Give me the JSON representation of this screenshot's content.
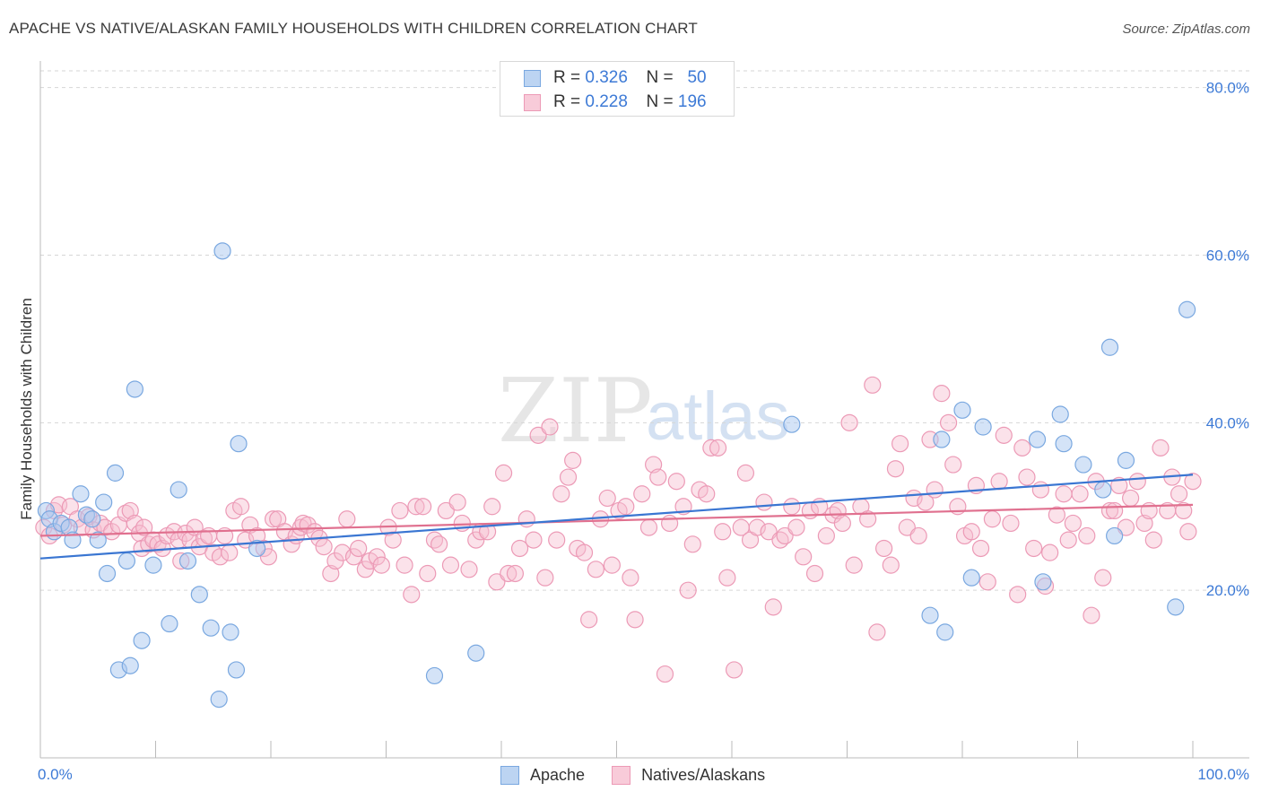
{
  "title": "APACHE VS NATIVE/ALASKAN FAMILY HOUSEHOLDS WITH CHILDREN CORRELATION CHART",
  "source": "Source: ZipAtlas.com",
  "watermark": {
    "zip": "ZIP",
    "atlas": "atlas"
  },
  "legend_top": {
    "apache": {
      "r_label": "R =",
      "r_value": "0.326",
      "n_label": "N =",
      "n_value": "50"
    },
    "natives": {
      "r_label": "R =",
      "r_value": "0.228",
      "n_label": "N =",
      "n_value": "196"
    }
  },
  "legend_bottom": {
    "apache": "Apache",
    "natives": "Natives/Alaskans"
  },
  "colors": {
    "apache_fill": "#a9c8f0",
    "apache_stroke": "#7aa8e0",
    "apache_line": "#3a76d2",
    "natives_fill": "#f6bfd0",
    "natives_stroke": "#ec9ab6",
    "natives_line": "#e0708f",
    "tick_label": "#3d7ad6",
    "grid": "#d6d6d6"
  },
  "chart_data": {
    "type": "scatter",
    "title": "APACHE VS NATIVE/ALASKAN FAMILY HOUSEHOLDS WITH CHILDREN CORRELATION CHART",
    "xlabel": "",
    "ylabel": "Family Households with Children",
    "xlim": [
      0,
      100
    ],
    "ylim": [
      0,
      82
    ],
    "x_tick_labels": [
      "0.0%",
      "100.0%"
    ],
    "y_ticks": [
      20,
      40,
      60,
      80
    ],
    "y_tick_labels": [
      "20.0%",
      "40.0%",
      "60.0%",
      "80.0%"
    ],
    "grid": true,
    "legend_position": "bottom-center",
    "series": [
      {
        "name": "Apache",
        "r": 0.326,
        "n": 50,
        "trend": {
          "x": [
            0,
            100
          ],
          "y": [
            23.8,
            33.8
          ]
        },
        "points": [
          [
            0.5,
            29.5
          ],
          [
            0.8,
            28.5
          ],
          [
            1.2,
            27
          ],
          [
            1.8,
            28
          ],
          [
            2.5,
            27.5
          ],
          [
            2.8,
            26
          ],
          [
            3.5,
            31.5
          ],
          [
            4,
            29
          ],
          [
            4.5,
            28.5
          ],
          [
            5,
            26
          ],
          [
            5.5,
            30.5
          ],
          [
            5.8,
            22
          ],
          [
            6.5,
            34
          ],
          [
            6.8,
            10.5
          ],
          [
            7.5,
            23.5
          ],
          [
            7.8,
            11
          ],
          [
            8.2,
            44
          ],
          [
            8.8,
            14
          ],
          [
            9.8,
            23
          ],
          [
            11.2,
            16
          ],
          [
            12,
            32
          ],
          [
            12.8,
            23.5
          ],
          [
            13.8,
            19.5
          ],
          [
            14.8,
            15.5
          ],
          [
            15.5,
            7
          ],
          [
            15.8,
            60.5
          ],
          [
            16.5,
            15
          ],
          [
            17,
            10.5
          ],
          [
            17.2,
            37.5
          ],
          [
            18.8,
            25
          ],
          [
            34.2,
            9.8
          ],
          [
            37.8,
            12.5
          ],
          [
            65.2,
            39.8
          ],
          [
            77.2,
            17
          ],
          [
            78.2,
            38
          ],
          [
            78.5,
            15
          ],
          [
            80,
            41.5
          ],
          [
            80.8,
            21.5
          ],
          [
            81.8,
            39.5
          ],
          [
            86.5,
            38
          ],
          [
            87,
            21
          ],
          [
            88.5,
            41
          ],
          [
            88.8,
            37.5
          ],
          [
            90.5,
            35
          ],
          [
            92.2,
            32
          ],
          [
            92.8,
            49
          ],
          [
            93.2,
            26.5
          ],
          [
            94.2,
            35.5
          ],
          [
            98.5,
            18
          ],
          [
            99.5,
            53.5
          ]
        ]
      },
      {
        "name": "Natives/Alaskans",
        "r": 0.228,
        "n": 196,
        "trend": {
          "x": [
            0,
            100
          ],
          "y": [
            26.5,
            30.2
          ]
        },
        "points": [
          [
            0.3,
            27.5
          ],
          [
            0.8,
            26.5
          ],
          [
            1.2,
            29.5
          ],
          [
            1.6,
            30.2
          ],
          [
            2,
            27.8
          ],
          [
            2.6,
            30
          ],
          [
            3.2,
            28.5
          ],
          [
            3.6,
            27.5
          ],
          [
            4.2,
            28.8
          ],
          [
            4.6,
            27.2
          ],
          [
            5.2,
            28
          ],
          [
            5.6,
            27.5
          ],
          [
            6.2,
            27
          ],
          [
            6.8,
            27.8
          ],
          [
            7.4,
            29.2
          ],
          [
            7.8,
            29.5
          ],
          [
            8.2,
            28
          ],
          [
            8.6,
            26.8
          ],
          [
            8.8,
            25
          ],
          [
            9,
            27.5
          ],
          [
            9.4,
            25.5
          ],
          [
            9.8,
            26
          ],
          [
            10.2,
            25.5
          ],
          [
            10.6,
            25
          ],
          [
            11,
            26.5
          ],
          [
            11.6,
            27
          ],
          [
            12,
            26
          ],
          [
            12.2,
            23.5
          ],
          [
            12.6,
            26.8
          ],
          [
            13,
            26
          ],
          [
            13.4,
            27.5
          ],
          [
            13.8,
            25.2
          ],
          [
            14.2,
            26.2
          ],
          [
            14.6,
            26.5
          ],
          [
            15,
            24.5
          ],
          [
            15.6,
            24
          ],
          [
            16,
            26.5
          ],
          [
            16.4,
            24.5
          ],
          [
            16.8,
            29.5
          ],
          [
            17.4,
            30
          ],
          [
            17.8,
            26
          ],
          [
            18.2,
            27.8
          ],
          [
            18.8,
            26.5
          ],
          [
            19.4,
            25
          ],
          [
            19.8,
            24
          ],
          [
            20.2,
            28.5
          ],
          [
            20.6,
            28.5
          ],
          [
            21.2,
            27
          ],
          [
            21.8,
            25.5
          ],
          [
            22.2,
            26.5
          ],
          [
            22.6,
            27.5
          ],
          [
            22.8,
            28
          ],
          [
            23.2,
            27.8
          ],
          [
            23.8,
            27
          ],
          [
            24.2,
            26.2
          ],
          [
            24.6,
            25.2
          ],
          [
            25.2,
            22
          ],
          [
            25.6,
            23.5
          ],
          [
            26.2,
            24.5
          ],
          [
            26.6,
            28.5
          ],
          [
            27.2,
            24
          ],
          [
            27.6,
            25
          ],
          [
            28.2,
            22.5
          ],
          [
            28.6,
            23.5
          ],
          [
            29.2,
            24
          ],
          [
            29.6,
            23
          ],
          [
            30.2,
            27.5
          ],
          [
            30.6,
            26
          ],
          [
            31.2,
            29.5
          ],
          [
            31.6,
            23
          ],
          [
            32.2,
            19.5
          ],
          [
            32.6,
            30
          ],
          [
            33.2,
            30
          ],
          [
            33.6,
            22
          ],
          [
            34.2,
            26
          ],
          [
            34.6,
            25.5
          ],
          [
            35.2,
            29.5
          ],
          [
            35.6,
            23
          ],
          [
            36.2,
            30.5
          ],
          [
            36.6,
            28
          ],
          [
            37.2,
            22.5
          ],
          [
            37.8,
            26
          ],
          [
            38.2,
            27
          ],
          [
            38.8,
            27
          ],
          [
            39.2,
            30
          ],
          [
            39.6,
            21
          ],
          [
            40.2,
            34
          ],
          [
            40.6,
            22
          ],
          [
            41.2,
            22
          ],
          [
            41.6,
            25
          ],
          [
            42.2,
            28.5
          ],
          [
            42.8,
            26
          ],
          [
            43.2,
            38.5
          ],
          [
            43.8,
            21.5
          ],
          [
            44.2,
            39.5
          ],
          [
            44.8,
            26
          ],
          [
            45.2,
            31.5
          ],
          [
            45.8,
            33.5
          ],
          [
            46.2,
            35.5
          ],
          [
            46.6,
            25
          ],
          [
            47.2,
            24.5
          ],
          [
            47.6,
            16.5
          ],
          [
            48.2,
            22.5
          ],
          [
            48.6,
            28.5
          ],
          [
            49.2,
            31
          ],
          [
            49.6,
            23
          ],
          [
            50.2,
            29.5
          ],
          [
            50.8,
            30
          ],
          [
            51.2,
            21.5
          ],
          [
            51.6,
            16.5
          ],
          [
            52.2,
            31.5
          ],
          [
            52.8,
            27.5
          ],
          [
            53.2,
            35
          ],
          [
            53.6,
            33.5
          ],
          [
            54.2,
            10
          ],
          [
            54.6,
            28
          ],
          [
            55.2,
            33
          ],
          [
            55.8,
            30
          ],
          [
            56.2,
            20
          ],
          [
            56.6,
            25.5
          ],
          [
            57.2,
            32
          ],
          [
            57.8,
            31.5
          ],
          [
            58.2,
            37
          ],
          [
            58.8,
            37
          ],
          [
            59.2,
            27
          ],
          [
            59.6,
            21.5
          ],
          [
            60.2,
            10.5
          ],
          [
            60.8,
            27.5
          ],
          [
            61.2,
            34
          ],
          [
            61.6,
            26
          ],
          [
            62.2,
            27.5
          ],
          [
            62.8,
            30.5
          ],
          [
            63.2,
            27
          ],
          [
            63.6,
            18
          ],
          [
            64.2,
            26
          ],
          [
            64.6,
            26.5
          ],
          [
            65.2,
            30
          ],
          [
            65.6,
            27.5
          ],
          [
            66.2,
            24
          ],
          [
            66.8,
            29.5
          ],
          [
            67.2,
            22
          ],
          [
            67.6,
            30
          ],
          [
            68.2,
            26.5
          ],
          [
            68.8,
            29
          ],
          [
            69.2,
            29.5
          ],
          [
            69.6,
            28
          ],
          [
            70.2,
            40
          ],
          [
            70.6,
            23
          ],
          [
            71.2,
            30
          ],
          [
            71.8,
            28.5
          ],
          [
            72.2,
            44.5
          ],
          [
            72.6,
            15
          ],
          [
            73.2,
            25
          ],
          [
            73.8,
            23
          ],
          [
            74.2,
            34.5
          ],
          [
            74.6,
            37.5
          ],
          [
            75.2,
            27.5
          ],
          [
            75.8,
            31
          ],
          [
            76.2,
            26.5
          ],
          [
            76.8,
            30.5
          ],
          [
            77.2,
            38
          ],
          [
            77.6,
            32
          ],
          [
            78.2,
            43.5
          ],
          [
            78.8,
            40
          ],
          [
            79.2,
            35
          ],
          [
            79.6,
            30
          ],
          [
            80.2,
            26.5
          ],
          [
            80.8,
            27
          ],
          [
            81.2,
            32.5
          ],
          [
            81.6,
            25
          ],
          [
            82.2,
            21
          ],
          [
            82.6,
            28.5
          ],
          [
            83.2,
            33
          ],
          [
            83.6,
            38.5
          ],
          [
            84.2,
            28
          ],
          [
            84.8,
            19.5
          ],
          [
            85.2,
            37
          ],
          [
            85.6,
            33.5
          ],
          [
            86.2,
            25
          ],
          [
            86.8,
            32
          ],
          [
            87.2,
            20.5
          ],
          [
            87.6,
            24.5
          ],
          [
            88.2,
            29
          ],
          [
            88.8,
            31.5
          ],
          [
            89.2,
            26
          ],
          [
            89.6,
            28
          ],
          [
            90.2,
            31.5
          ],
          [
            90.8,
            26.5
          ],
          [
            91.2,
            17
          ],
          [
            91.6,
            33
          ],
          [
            92.2,
            21.5
          ],
          [
            92.8,
            29.5
          ],
          [
            93.2,
            29.5
          ],
          [
            93.6,
            32.5
          ],
          [
            94.2,
            27.5
          ],
          [
            94.6,
            31
          ],
          [
            95.2,
            33
          ],
          [
            95.8,
            28
          ],
          [
            96.2,
            29.5
          ],
          [
            96.6,
            26
          ],
          [
            97.2,
            37
          ],
          [
            97.8,
            29.5
          ],
          [
            98.2,
            33.5
          ],
          [
            98.8,
            31.5
          ],
          [
            99.2,
            29.5
          ],
          [
            99.6,
            27
          ],
          [
            100,
            33
          ]
        ]
      }
    ]
  }
}
